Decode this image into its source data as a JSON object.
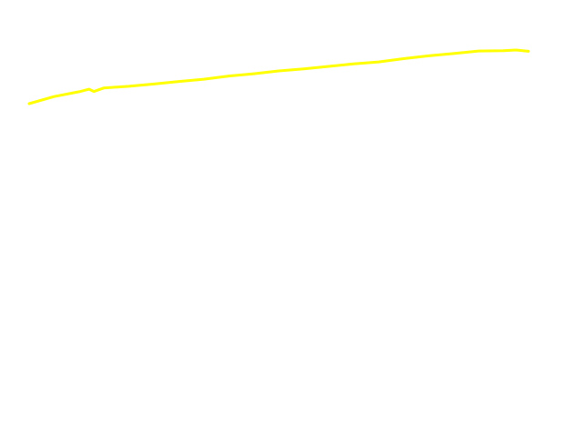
{
  "chart_data": {
    "type": "line",
    "title": "",
    "xlabel": "",
    "ylabel": "",
    "grid": false,
    "legend": "none",
    "axes_visible": false,
    "xlim": [
      0,
      20
    ],
    "ylim": [
      0,
      100
    ],
    "series": [
      {
        "color": "#ffff00",
        "x": [
          0,
          1,
          2,
          2.4,
          2.6,
          3,
          4,
          5,
          6,
          7,
          8,
          9,
          10,
          11,
          12,
          13,
          14,
          15,
          16,
          17,
          18,
          19,
          19.5,
          20
        ],
        "y": [
          83.5,
          85.7,
          87.2,
          88,
          87.3,
          88.4,
          88.9,
          89.6,
          90.4,
          91.1,
          92.1,
          92.8,
          93.7,
          94.3,
          95.1,
          95.9,
          96.5,
          97.5,
          98.4,
          99.1,
          99.9,
          100,
          100.2,
          99.8
        ]
      }
    ]
  }
}
